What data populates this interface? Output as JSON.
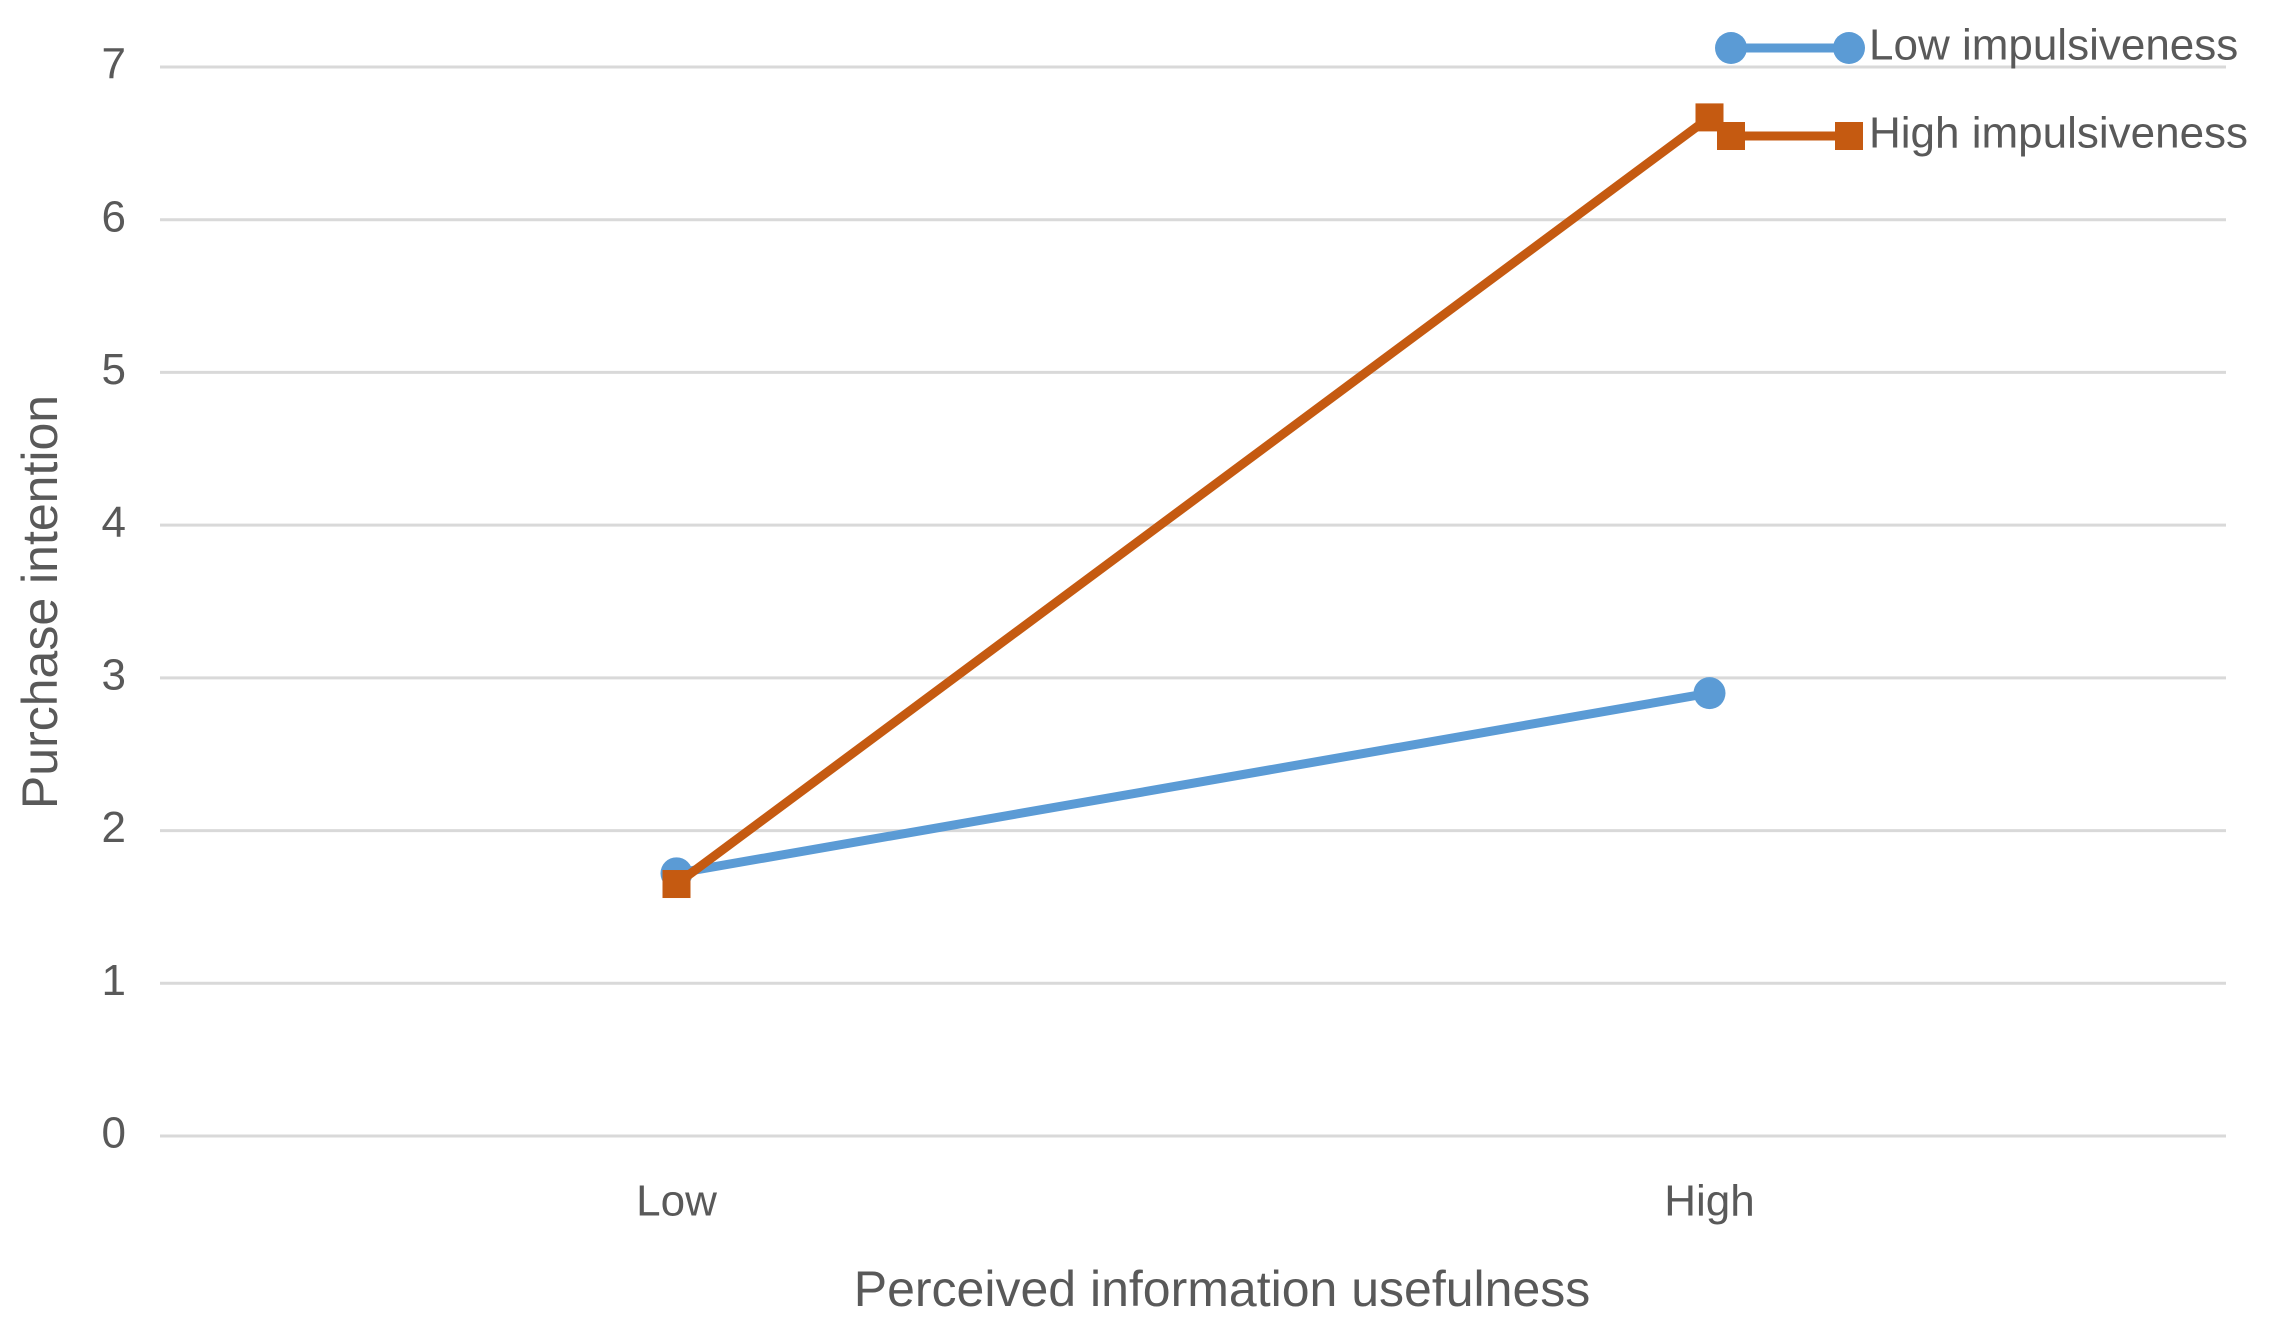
{
  "chart_data": {
    "type": "line",
    "x_label": "Perceived information usefulness",
    "y_label": "Purchase intention",
    "categories": [
      "Low",
      "High"
    ],
    "series": [
      {
        "name": "Low impulsiveness",
        "color": "#5b9bd5",
        "marker": "circle",
        "values": [
          1.72,
          2.9
        ]
      },
      {
        "name": "High impulsiveness",
        "color": "#c55a11",
        "marker": "square",
        "values": [
          1.65,
          6.67
        ]
      }
    ],
    "ylim": [
      0,
      7
    ],
    "yticks": [
      0,
      1,
      2,
      3,
      4,
      5,
      6,
      7
    ],
    "grid": true,
    "legend": "top-right"
  }
}
